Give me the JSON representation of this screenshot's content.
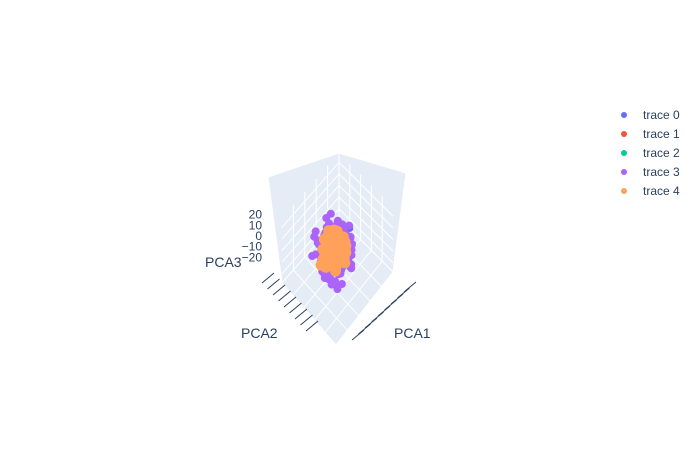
{
  "chart_data": {
    "type": "scatter3d",
    "title": "",
    "axes": {
      "x": {
        "label": "PCA1",
        "range": [
          -22,
          22
        ]
      },
      "y": {
        "label": "PCA2",
        "range": [
          -22,
          18
        ]
      },
      "z": {
        "label": "PCA3",
        "range": [
          -28,
          28
        ],
        "ticks": [
          20,
          10,
          0,
          -10,
          -20
        ]
      }
    },
    "series": [
      {
        "name": "trace 0",
        "color": "#636efa",
        "count": 60
      },
      {
        "name": "trace 1",
        "color": "#ef553b",
        "count": 140
      },
      {
        "name": "trace 2",
        "color": "#00cc96",
        "count": 90
      },
      {
        "name": "trace 3",
        "color": "#ab63fa",
        "count": 380
      },
      {
        "name": "trace 4",
        "color": "#ffa15a",
        "count": 190
      }
    ],
    "grid": true,
    "legend_position": "top-right"
  }
}
